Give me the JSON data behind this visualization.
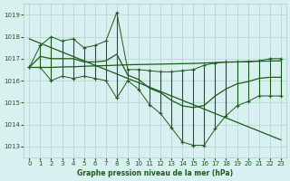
{
  "title": "Graphe pression niveau de la mer (hPa)",
  "bg_color": "#d8f0f0",
  "grid_color": "#b8d8d8",
  "line_color": "#1a5c1a",
  "xlim": [
    -0.5,
    23.5
  ],
  "ylim": [
    1012.5,
    1019.5
  ],
  "yticks": [
    1013,
    1014,
    1015,
    1016,
    1017,
    1018,
    1019
  ],
  "xticks": [
    0,
    1,
    2,
    3,
    4,
    5,
    6,
    7,
    8,
    9,
    10,
    11,
    12,
    13,
    14,
    15,
    16,
    17,
    18,
    19,
    20,
    21,
    22,
    23
  ],
  "hours": [
    0,
    1,
    2,
    3,
    4,
    5,
    6,
    7,
    8,
    9,
    10,
    11,
    12,
    13,
    14,
    15,
    16,
    17,
    18,
    19,
    20,
    21,
    22,
    23
  ],
  "pressure_max": [
    1016.6,
    1017.6,
    1018.0,
    1017.8,
    1017.9,
    1017.5,
    1017.6,
    1017.8,
    1019.1,
    1016.5,
    1016.5,
    1016.45,
    1016.4,
    1016.4,
    1016.45,
    1016.5,
    1016.7,
    1016.8,
    1016.85,
    1016.85,
    1016.85,
    1016.9,
    1017.0,
    1017.0
  ],
  "pressure_min": [
    1016.6,
    1016.6,
    1016.0,
    1016.2,
    1016.1,
    1016.2,
    1016.1,
    1016.0,
    1015.2,
    1016.0,
    1015.6,
    1014.9,
    1014.5,
    1013.85,
    1013.2,
    1013.05,
    1013.05,
    1013.8,
    1014.4,
    1014.85,
    1015.05,
    1015.3,
    1015.3,
    1015.3
  ],
  "pressure_avg": [
    1016.6,
    1017.1,
    1017.0,
    1017.0,
    1017.0,
    1016.85,
    1016.85,
    1016.9,
    1017.2,
    1016.25,
    1016.05,
    1015.65,
    1015.45,
    1015.1,
    1014.85,
    1014.77,
    1014.87,
    1015.3,
    1015.62,
    1015.85,
    1015.95,
    1016.1,
    1016.15,
    1016.15
  ],
  "trend1": [
    1017.9,
    1017.7,
    1017.5,
    1017.3,
    1017.1,
    1016.9,
    1016.7,
    1016.5,
    1016.3,
    1016.1,
    1015.9,
    1015.7,
    1015.5,
    1015.3,
    1015.1,
    1014.9,
    1014.7,
    1014.5,
    1014.3,
    1014.1,
    1013.9,
    1013.7,
    1013.5,
    1013.3
  ],
  "trend2": [
    1016.6,
    1016.6,
    1016.6,
    1016.62,
    1016.63,
    1016.65,
    1016.67,
    1016.68,
    1016.7,
    1016.72,
    1016.73,
    1016.74,
    1016.75,
    1016.76,
    1016.77,
    1016.78,
    1016.8,
    1016.82,
    1016.84,
    1016.85,
    1016.87,
    1016.88,
    1016.89,
    1016.9
  ]
}
